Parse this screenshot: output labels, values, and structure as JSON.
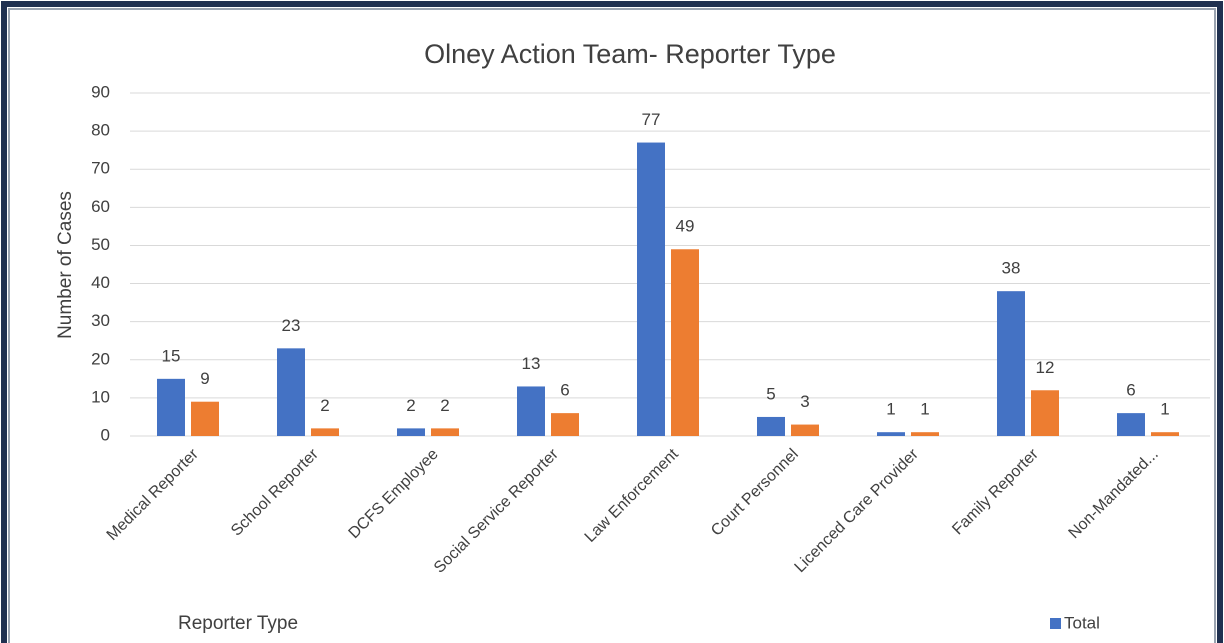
{
  "chart_data": {
    "type": "bar",
    "title": "Olney Action Team- Reporter Type",
    "x_label": "Reporter Type",
    "y_label": "Number of Cases",
    "categories": [
      "Medical Reporter",
      "School Reporter",
      "DCFS Employee",
      "Social Service Reporter",
      "Law Enforcement",
      "Court Personnel",
      "Licenced Care Provider",
      "Family Reporter",
      "Non-Mandated..."
    ],
    "series": [
      {
        "name": "Total",
        "color": "#4472c4",
        "values": [
          15,
          23,
          2,
          13,
          77,
          5,
          1,
          38,
          6
        ]
      },
      {
        "color": "#ed7d31",
        "values": [
          9,
          2,
          2,
          6,
          49,
          3,
          1,
          12,
          1
        ]
      }
    ],
    "ylim": [
      0,
      90
    ],
    "yticks": [
      0,
      10,
      20,
      30,
      40,
      50,
      60,
      70,
      80,
      90
    ],
    "grid": true
  }
}
